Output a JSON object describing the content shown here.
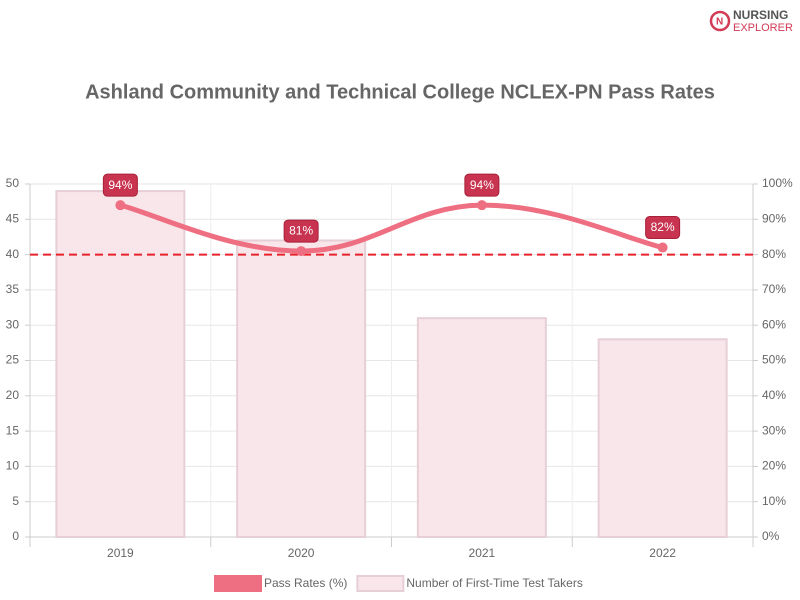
{
  "brand": [
    "NURSING",
    "EXPLORER"
  ],
  "chart_data": {
    "type": "combo",
    "title": "Ashland Community and Technical College NCLEX-PN Pass Rates",
    "categories": [
      "2019",
      "2020",
      "2021",
      "2022"
    ],
    "series": [
      {
        "name": "Pass Rates (%)",
        "type": "line",
        "axis": "y2",
        "color": "#ef6f82",
        "values": [
          94,
          81,
          94,
          82
        ],
        "value_labels": [
          "94%",
          "81%",
          "94%",
          "82%"
        ]
      },
      {
        "name": "Number of First-Time Test Takers",
        "type": "bar",
        "color": "#f8e6ea",
        "values": [
          49,
          42,
          31,
          28
        ]
      }
    ],
    "ylim": [
      0,
      50
    ],
    "yticks": [
      0,
      5,
      10,
      15,
      20,
      25,
      30,
      35,
      40,
      45,
      50
    ],
    "y2lim": [
      0,
      100
    ],
    "y2ticks": [
      {
        "value": 0,
        "label": "0%"
      },
      {
        "value": 10,
        "label": "10%"
      },
      {
        "value": 20,
        "label": "20%"
      },
      {
        "value": 30,
        "label": "30%"
      },
      {
        "value": 40,
        "label": "40%"
      },
      {
        "value": 50,
        "label": "50%"
      },
      {
        "value": 60,
        "label": "60%"
      },
      {
        "value": 70,
        "label": "70%"
      },
      {
        "value": 80,
        "label": "80%"
      },
      {
        "value": 90,
        "label": "90%"
      },
      {
        "value": 100,
        "label": "100%"
      }
    ],
    "reference_line": {
      "value": 80,
      "axis": "y2",
      "color": "#e8222a"
    },
    "grid": true,
    "legend": "bottom"
  }
}
